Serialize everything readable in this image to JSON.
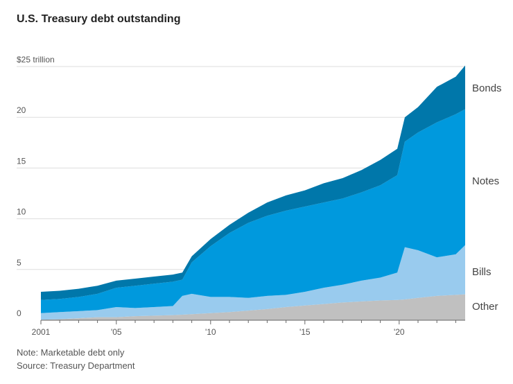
{
  "chart_data": {
    "type": "area",
    "stacked": true,
    "title": "U.S. Treasury debt outstanding",
    "ylabel": "",
    "y_unit_label": "$25 trillion",
    "ylim": [
      0,
      25
    ],
    "yticks": [
      0,
      5,
      10,
      15,
      20,
      25
    ],
    "ytick_labels": [
      "0",
      "5",
      "10",
      "15",
      "20",
      "$25 trillion"
    ],
    "xlim": [
      2001,
      2023.5
    ],
    "xticks": [
      2001,
      2005,
      2010,
      2015,
      2020
    ],
    "xtick_labels": [
      "2001",
      "'05",
      "'10",
      "'15",
      "'20"
    ],
    "grid": true,
    "legend_placement": "right, inline labels",
    "x": [
      2001,
      2002,
      2003,
      2004,
      2005,
      2006,
      2007,
      2008,
      2008.5,
      2009,
      2010,
      2011,
      2012,
      2013,
      2014,
      2015,
      2016,
      2017,
      2018,
      2019,
      2019.9,
      2020.3,
      2021,
      2022,
      2023,
      2023.5
    ],
    "series": [
      {
        "name": "Other",
        "color": "#c0c0c0",
        "values": [
          0.05,
          0.1,
          0.2,
          0.3,
          0.3,
          0.4,
          0.45,
          0.5,
          0.55,
          0.6,
          0.7,
          0.8,
          0.95,
          1.1,
          1.3,
          1.45,
          1.6,
          1.75,
          1.85,
          1.95,
          2.0,
          2.05,
          2.2,
          2.4,
          2.5,
          2.55
        ]
      },
      {
        "name": "Bills",
        "color": "#99cbee",
        "values": [
          0.65,
          0.7,
          0.7,
          0.7,
          1.0,
          0.8,
          0.85,
          0.9,
          1.85,
          2.0,
          1.6,
          1.5,
          1.25,
          1.3,
          1.2,
          1.35,
          1.6,
          1.75,
          2.05,
          2.25,
          2.7,
          5.15,
          4.7,
          3.8,
          4.0,
          4.85
        ]
      },
      {
        "name": "Notes",
        "color": "#0099dd",
        "values": [
          1.3,
          1.3,
          1.4,
          1.6,
          1.9,
          2.2,
          2.3,
          2.4,
          1.6,
          3.1,
          5.0,
          6.3,
          7.4,
          7.9,
          8.3,
          8.4,
          8.4,
          8.5,
          8.7,
          9.1,
          9.6,
          10.4,
          11.6,
          13.3,
          13.8,
          13.4
        ]
      },
      {
        "name": "Bonds",
        "color": "#0077aa",
        "values": [
          0.8,
          0.8,
          0.8,
          0.8,
          0.7,
          0.7,
          0.7,
          0.7,
          0.7,
          0.6,
          0.7,
          0.8,
          1.0,
          1.3,
          1.5,
          1.6,
          1.9,
          2.0,
          2.2,
          2.5,
          2.6,
          2.4,
          2.5,
          3.5,
          3.7,
          4.3
        ]
      }
    ]
  },
  "footer": {
    "note": "Note: Marketable debt only",
    "source": "Source: Treasury Department"
  }
}
